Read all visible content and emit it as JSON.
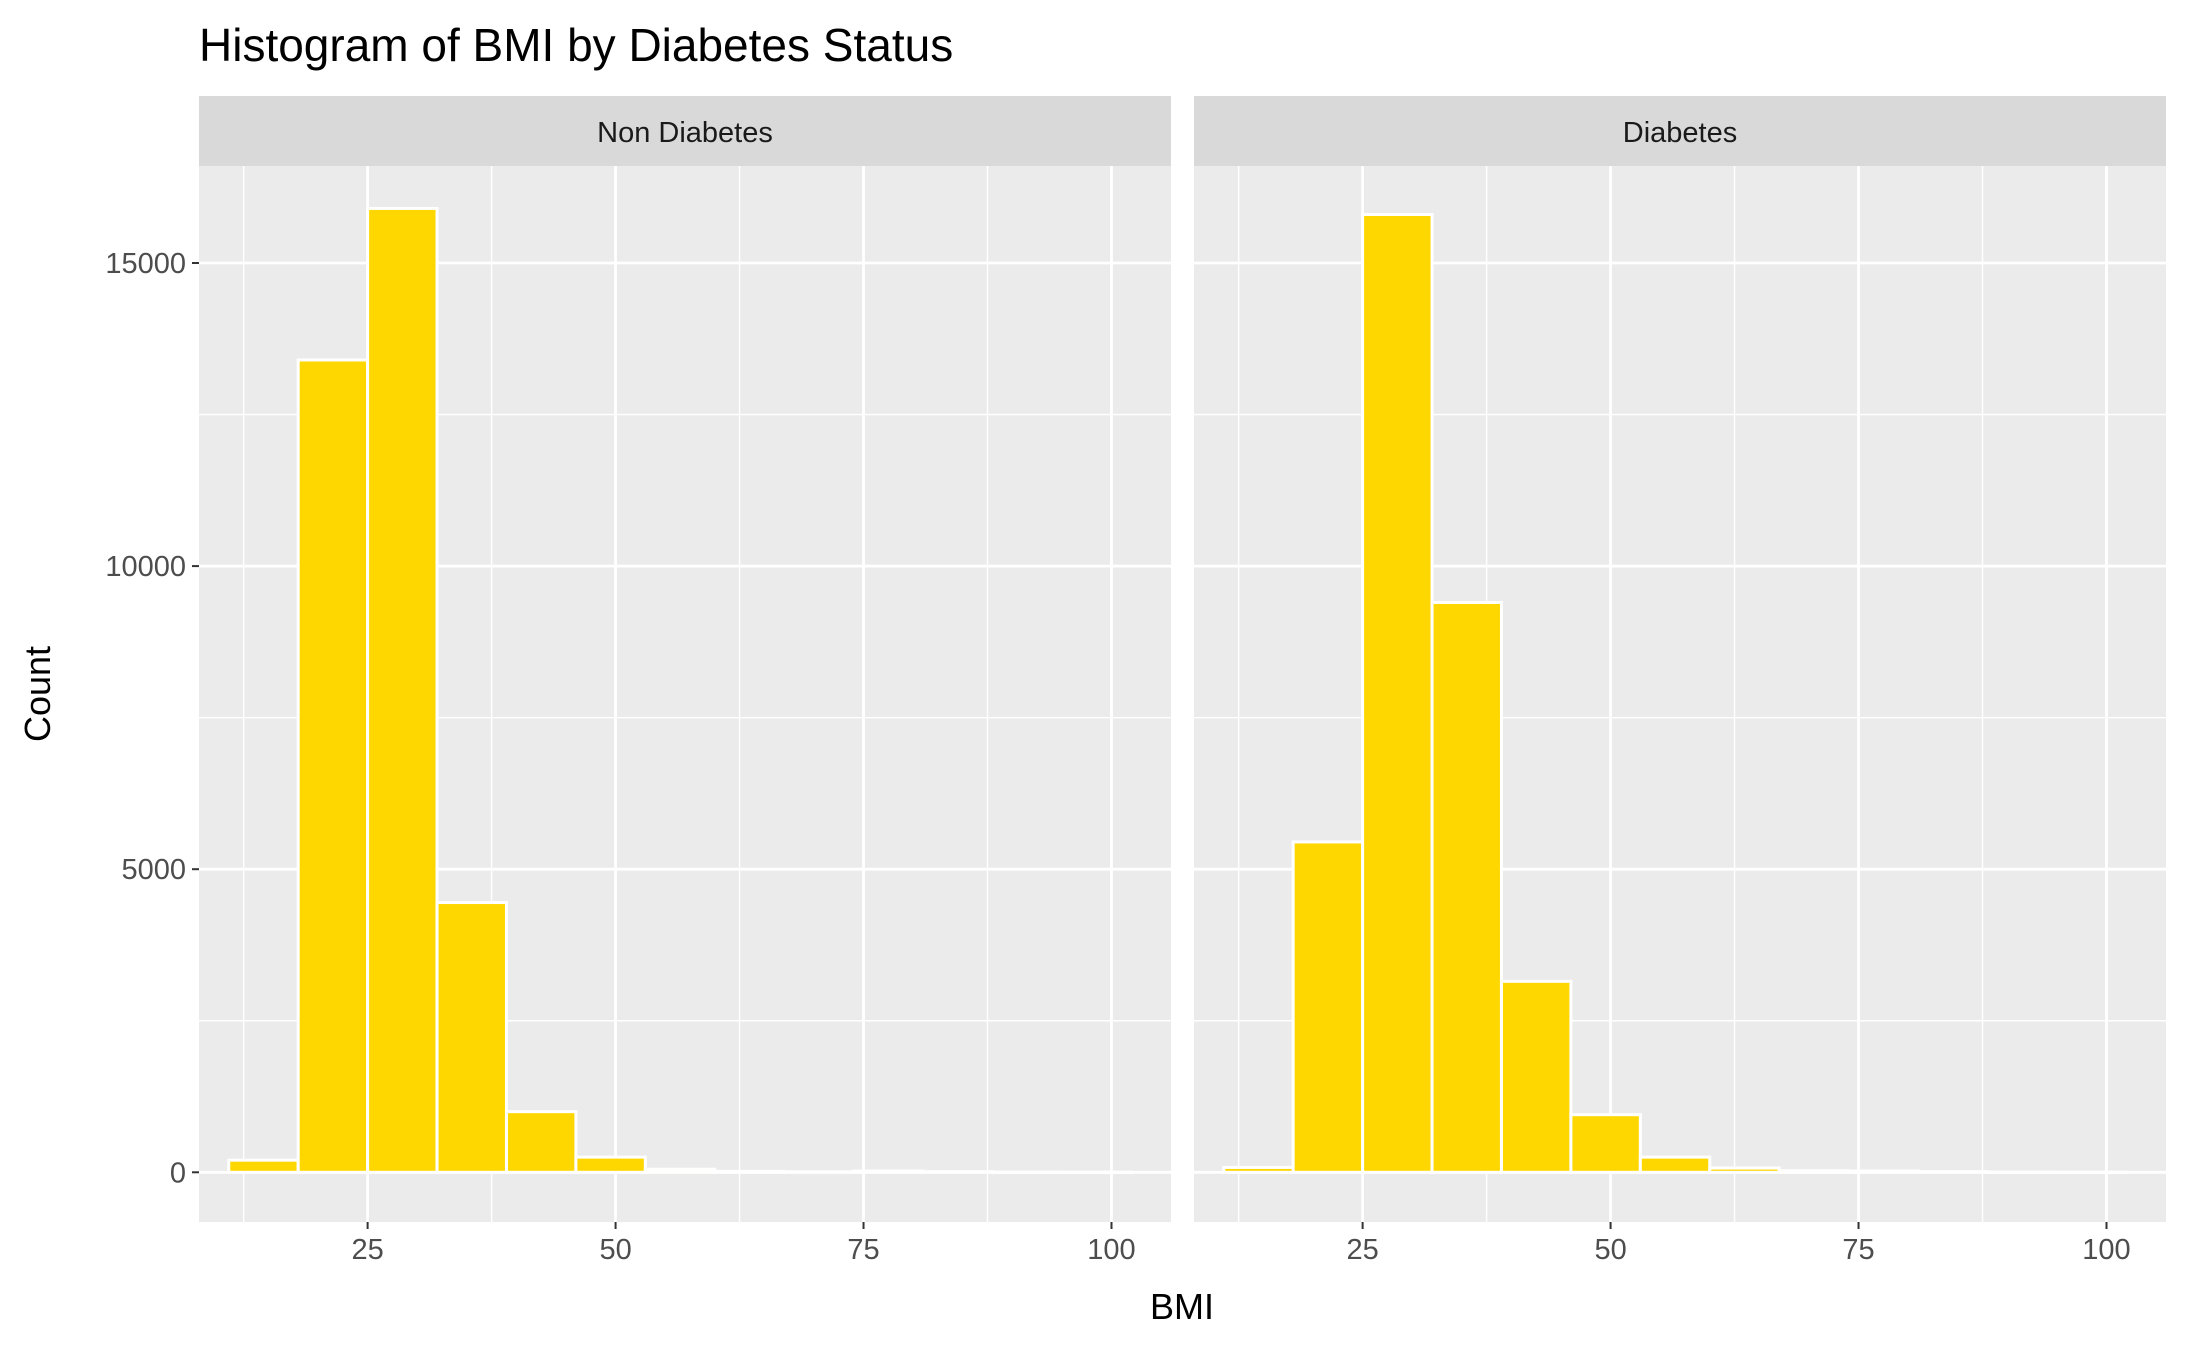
{
  "chart_data": {
    "type": "bar",
    "title": "Histogram of BMI by Diabetes Status",
    "xlabel": "BMI",
    "ylabel": "Count",
    "xlim": [
      8,
      106
    ],
    "ylim": [
      -820,
      16600
    ],
    "x_ticks": [
      25,
      50,
      75,
      100
    ],
    "y_ticks": [
      0,
      5000,
      10000,
      15000
    ],
    "x_tick_labels": [
      "25",
      "50",
      "75",
      "100"
    ],
    "y_tick_labels": [
      "0",
      "5000",
      "10000",
      "15000"
    ],
    "grid": true,
    "legend": "none",
    "colors": {
      "bar_fill": "#FFD700",
      "bar_outline": "#FFFFFF",
      "panel_bg": "#EBEBEB",
      "strip_bg": "#D9D9D9",
      "grid": "#FFFFFF"
    },
    "panels": [
      {
        "name": "Non Diabetes",
        "bins": [
          {
            "x0": 11,
            "x1": 18,
            "count": 200
          },
          {
            "x0": 18,
            "x1": 25,
            "count": 13400
          },
          {
            "x0": 25,
            "x1": 32,
            "count": 15900
          },
          {
            "x0": 32,
            "x1": 39,
            "count": 4450
          },
          {
            "x0": 39,
            "x1": 46,
            "count": 1000
          },
          {
            "x0": 46,
            "x1": 53,
            "count": 250
          },
          {
            "x0": 53,
            "x1": 60,
            "count": 50
          },
          {
            "x0": 60,
            "x1": 67,
            "count": 15
          },
          {
            "x0": 67,
            "x1": 74,
            "count": 8
          },
          {
            "x0": 74,
            "x1": 81,
            "count": 20
          },
          {
            "x0": 81,
            "x1": 88,
            "count": 10
          },
          {
            "x0": 88,
            "x1": 95,
            "count": 5
          },
          {
            "x0": 95,
            "x1": 102,
            "count": 3
          }
        ]
      },
      {
        "name": "Diabetes",
        "bins": [
          {
            "x0": 11,
            "x1": 18,
            "count": 80
          },
          {
            "x0": 18,
            "x1": 25,
            "count": 5450
          },
          {
            "x0": 25,
            "x1": 32,
            "count": 15800
          },
          {
            "x0": 32,
            "x1": 39,
            "count": 9400
          },
          {
            "x0": 39,
            "x1": 46,
            "count": 3150
          },
          {
            "x0": 46,
            "x1": 53,
            "count": 950
          },
          {
            "x0": 53,
            "x1": 60,
            "count": 250
          },
          {
            "x0": 60,
            "x1": 67,
            "count": 70
          },
          {
            "x0": 67,
            "x1": 74,
            "count": 25
          },
          {
            "x0": 74,
            "x1": 81,
            "count": 20
          },
          {
            "x0": 81,
            "x1": 88,
            "count": 10
          },
          {
            "x0": 88,
            "x1": 95,
            "count": 5
          },
          {
            "x0": 95,
            "x1": 102,
            "count": 3
          }
        ]
      }
    ]
  }
}
